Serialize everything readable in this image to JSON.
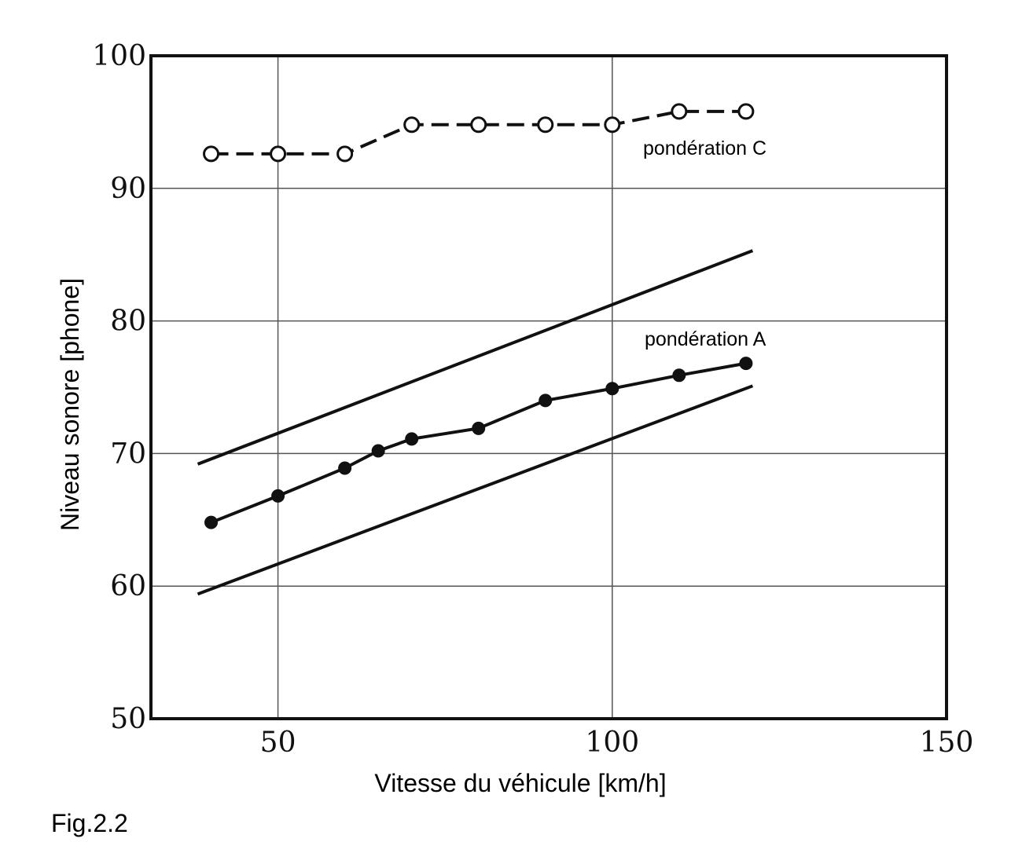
{
  "chart_data": {
    "type": "line",
    "xlabel": "Vitesse du véhicule [km/h]",
    "ylabel": "Niveau sonore [phone]",
    "xlim": [
      31,
      150
    ],
    "ylim": [
      50,
      100
    ],
    "xticks": [
      50,
      100,
      150
    ],
    "yticks": [
      50,
      60,
      70,
      80,
      90,
      100
    ],
    "grid": true,
    "series": [
      {
        "name": "pondération C",
        "style": "dashed-open-circle",
        "x": [
          40,
          50,
          60,
          70,
          80,
          90,
          100,
          110,
          120
        ],
        "y": [
          92.6,
          92.6,
          92.6,
          94.8,
          94.8,
          94.8,
          94.8,
          95.8,
          95.8
        ]
      },
      {
        "name": "pondération A",
        "style": "solid-filled-circle",
        "x": [
          40,
          50,
          60,
          65,
          70,
          80,
          90,
          100,
          110,
          120
        ],
        "y": [
          64.8,
          66.8,
          68.9,
          70.2,
          71.1,
          71.9,
          74.0,
          74.9,
          75.9,
          76.8
        ]
      }
    ],
    "bounds": [
      {
        "x": [
          38,
          121
        ],
        "y": [
          69.2,
          85.3
        ]
      },
      {
        "x": [
          38,
          121
        ],
        "y": [
          59.4,
          75.1
        ]
      }
    ]
  },
  "caption": "Fig.2.2"
}
